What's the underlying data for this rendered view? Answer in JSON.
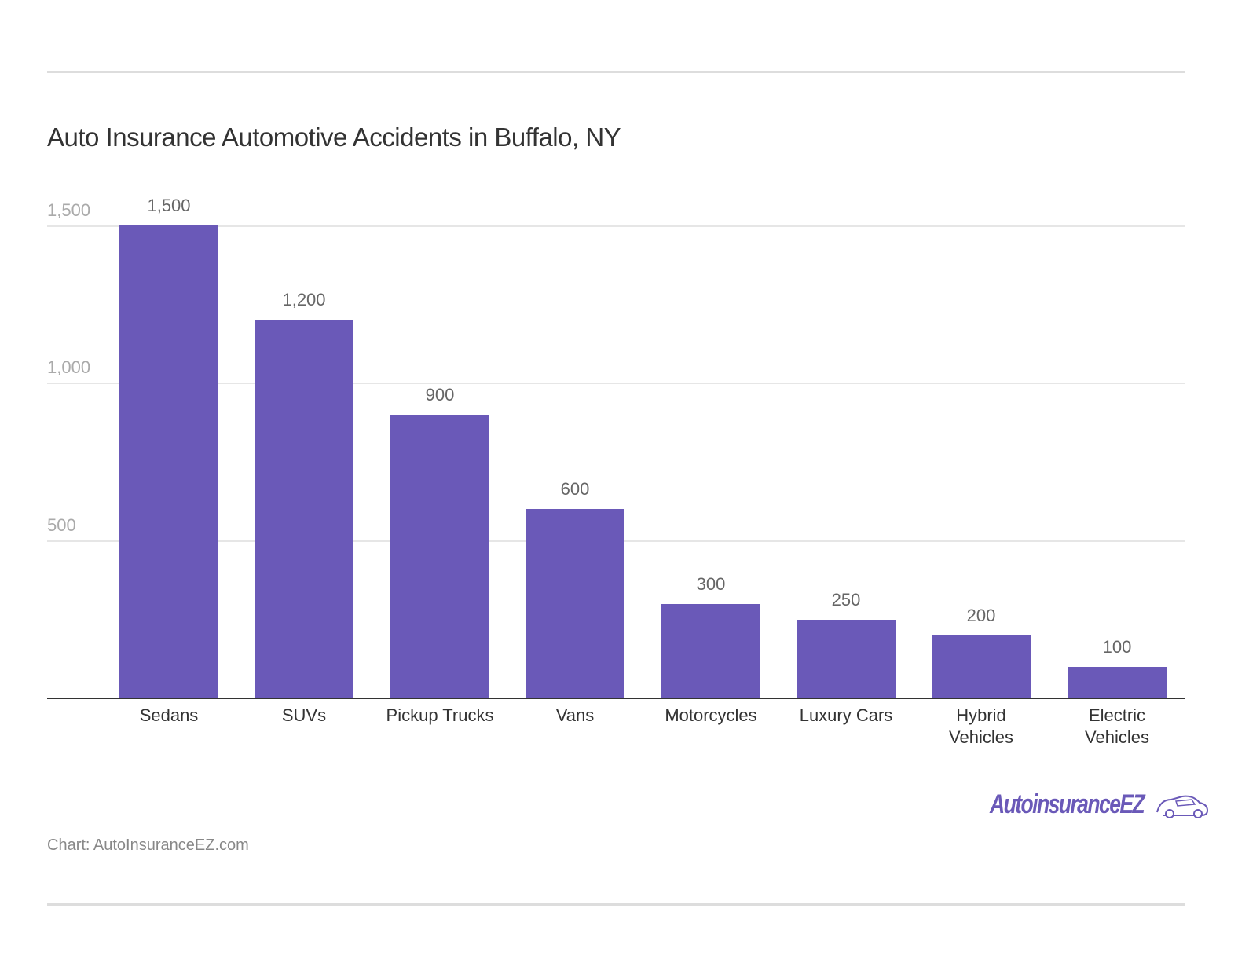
{
  "title": "Auto Insurance Automotive Accidents in Buffalo, NY",
  "source": "Chart: AutoInsuranceEZ.com",
  "logo": {
    "text": "AutoinsuranceEZ",
    "icon": "car-outline-icon",
    "color": "#6a59b8"
  },
  "colors": {
    "bar": "#6a59b8",
    "grid": "#e6e6e6",
    "axis": "#333333"
  },
  "y_ticks": [
    "1,500",
    "1,000",
    "500"
  ],
  "bars": [
    {
      "label": "Sedans",
      "value": 1500,
      "value_label": "1,500"
    },
    {
      "label": "SUVs",
      "value": 1200,
      "value_label": "1,200"
    },
    {
      "label": "Pickup Trucks",
      "value": 900,
      "value_label": "900"
    },
    {
      "label": "Vans",
      "value": 600,
      "value_label": "600"
    },
    {
      "label": "Motorcycles",
      "value": 300,
      "value_label": "300"
    },
    {
      "label": "Luxury Cars",
      "value": 250,
      "value_label": "250"
    },
    {
      "label": "Hybrid Vehicles",
      "value": 200,
      "value_label": "200"
    },
    {
      "label": "Electric Vehicles",
      "value": 100,
      "value_label": "100"
    }
  ],
  "chart_data": {
    "type": "bar",
    "title": "Auto Insurance Automotive Accidents in Buffalo, NY",
    "categories": [
      "Sedans",
      "SUVs",
      "Pickup Trucks",
      "Vans",
      "Motorcycles",
      "Luxury Cars",
      "Hybrid Vehicles",
      "Electric Vehicles"
    ],
    "values": [
      1500,
      1200,
      900,
      600,
      300,
      250,
      200,
      100
    ],
    "xlabel": "",
    "ylabel": "",
    "ylim": [
      0,
      1500
    ],
    "yticks": [
      500,
      1000,
      1500
    ],
    "grid": true,
    "data_labels": true,
    "legend": null,
    "source": "Chart: AutoInsuranceEZ.com"
  }
}
